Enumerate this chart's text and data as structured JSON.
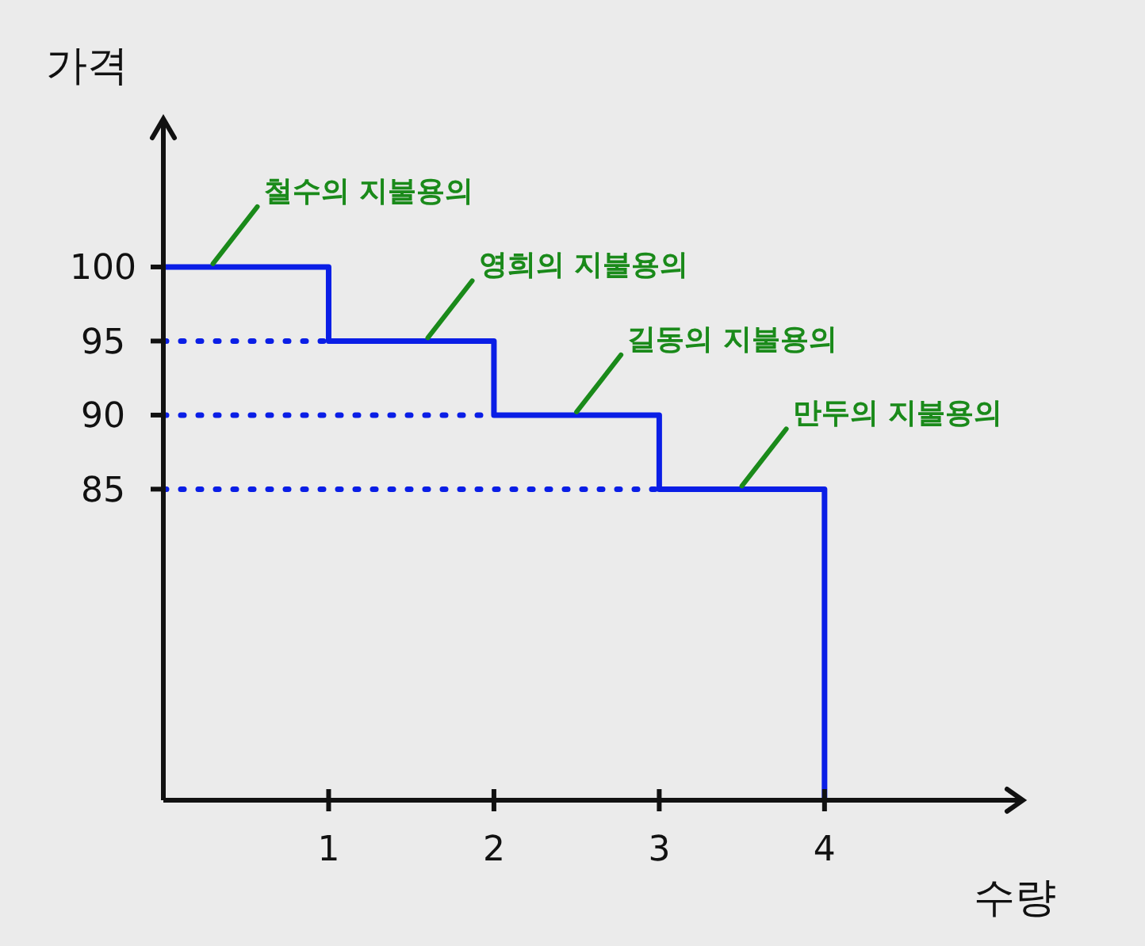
{
  "chart_data": {
    "type": "step",
    "xlabel": "수량",
    "ylabel": "가격",
    "xlim": [
      0,
      5.2
    ],
    "xticks": [
      1,
      2,
      3,
      4
    ],
    "ylim": [
      64,
      110
    ],
    "yticks": [
      85,
      90,
      95,
      100
    ],
    "grid": false,
    "series": [
      {
        "color": "#0a1ee6",
        "x": [
          0,
          1,
          2,
          3,
          4
        ],
        "values": [
          100,
          95,
          90,
          85,
          64
        ]
      },
      {
        "type": "line",
        "line_style": "dotted",
        "color": "#0a1ee6",
        "x": [
          0,
          1
        ],
        "values": [
          95,
          95
        ]
      },
      {
        "type": "line",
        "line_style": "dotted",
        "color": "#0a1ee6",
        "x": [
          0,
          2
        ],
        "values": [
          90,
          90
        ]
      },
      {
        "type": "line",
        "line_style": "dotted",
        "color": "#0a1ee6",
        "x": [
          0,
          3
        ],
        "values": [
          85,
          85
        ]
      }
    ],
    "annotations": [
      {
        "text": "철수의 지불용의",
        "x": 0.3,
        "y": 100
      },
      {
        "text": "영희의 지불용의",
        "x": 1.6,
        "y": 95
      },
      {
        "text": "길동의 지불용의",
        "x": 2.5,
        "y": 90
      },
      {
        "text": "만두의 지불용의",
        "x": 3.5,
        "y": 85
      }
    ]
  }
}
